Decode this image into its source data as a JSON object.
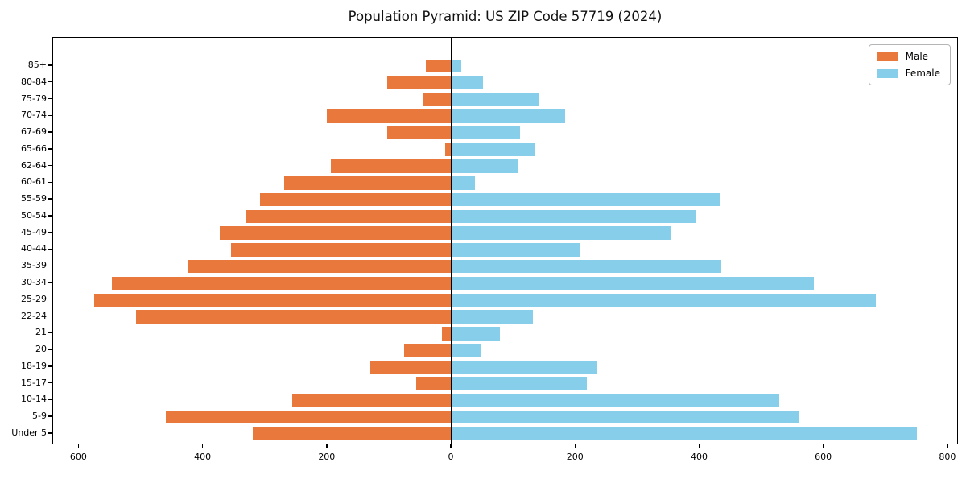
{
  "title": "Population Pyramid: US ZIP Code 57719 (2024)",
  "legend": {
    "items": [
      {
        "label": "Male",
        "color": "#E8783C"
      },
      {
        "label": "Female",
        "color": "#87CEEB"
      }
    ]
  },
  "colors": {
    "male": "#E8783C",
    "female": "#87CEEB",
    "axis": "#000000"
  },
  "chart_data": {
    "type": "bar",
    "subtype": "population-pyramid",
    "title": "Population Pyramid: US ZIP Code 57719 (2024)",
    "orientation": "horizontal",
    "grid": false,
    "legend_position": "upper right",
    "zero_line": true,
    "categories_top_to_bottom": [
      "85+",
      "80-84",
      "75-79",
      "70-74",
      "67-69",
      "65-66",
      "62-64",
      "60-61",
      "55-59",
      "50-54",
      "45-49",
      "40-44",
      "35-39",
      "30-34",
      "25-29",
      "22-24",
      "21",
      "20",
      "18-19",
      "15-17",
      "10-14",
      "5-9",
      "Under 5"
    ],
    "series": [
      {
        "name": "Male",
        "side": "left",
        "color": "#E8783C",
        "values": [
          42,
          104,
          47,
          201,
          104,
          11,
          194,
          270,
          309,
          332,
          374,
          356,
          425,
          547,
          576,
          509,
          16,
          76,
          131,
          57,
          257,
          461,
          321
        ]
      },
      {
        "name": "Female",
        "side": "right",
        "color": "#87CEEB",
        "values": [
          16,
          50,
          140,
          183,
          110,
          134,
          106,
          37,
          433,
          394,
          354,
          206,
          434,
          584,
          684,
          131,
          78,
          47,
          234,
          218,
          528,
          559,
          749
        ]
      }
    ],
    "x_tick_values": [
      -600,
      -400,
      -200,
      0,
      200,
      400,
      600,
      800
    ],
    "x_tick_labels": [
      "600",
      "400",
      "200",
      "0",
      "200",
      "400",
      "600",
      "800"
    ],
    "xlim": [
      -642,
      817
    ],
    "xlabel": "",
    "ylabel": ""
  }
}
